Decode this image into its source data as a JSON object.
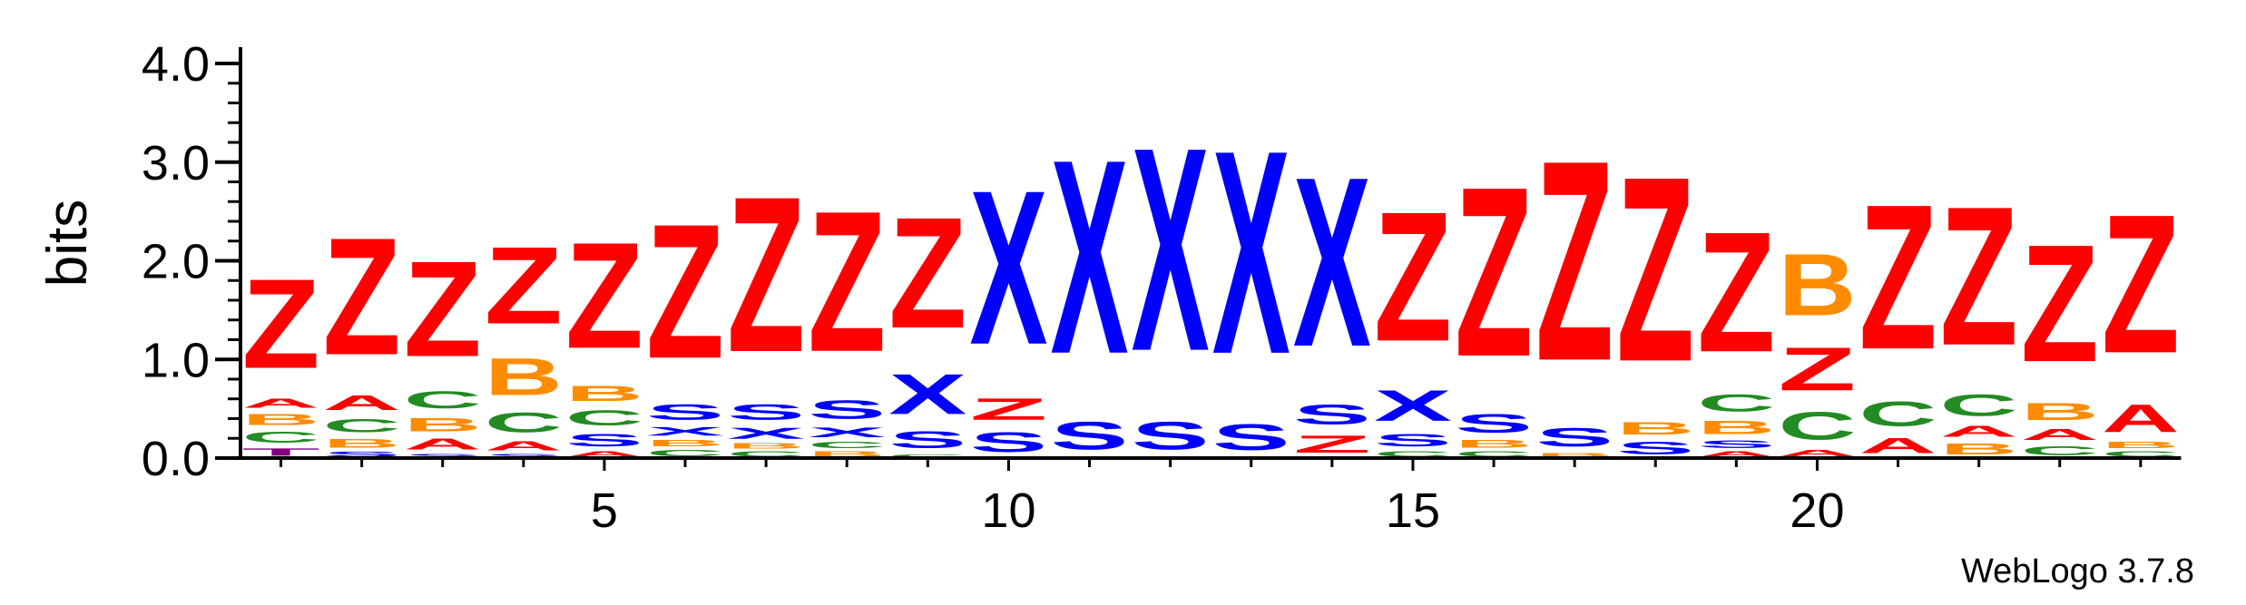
{
  "credit": "WebLogo 3.7.8",
  "colors": {
    "Z": "#ff0000",
    "X": "#0000ff",
    "S": "#0000ff",
    "B": "#ff8c00",
    "C": "#228b22",
    "A": "#ff0000",
    "T": "#800080"
  },
  "chart_data": {
    "type": "sequence-logo",
    "ylabel": "bits",
    "ylim": [
      0,
      4
    ],
    "yticks": [
      "0.0",
      "1.0",
      "2.0",
      "3.0",
      "4.0"
    ],
    "xticks": [
      5,
      10,
      15,
      20
    ],
    "xlim": [
      1,
      24
    ],
    "grid": false,
    "columns": [
      {
        "position": 1,
        "stack": [
          [
            "T",
            0.12
          ],
          [
            "C",
            0.18
          ],
          [
            "B",
            0.18
          ],
          [
            "A",
            0.15
          ],
          [
            "Z",
            1.45
          ]
        ]
      },
      {
        "position": 2,
        "stack": [
          [
            "S",
            0.08
          ],
          [
            "B",
            0.14
          ],
          [
            "C",
            0.22
          ],
          [
            "A",
            0.24
          ],
          [
            "Z",
            1.9
          ]
        ]
      },
      {
        "position": 3,
        "stack": [
          [
            "S",
            0.05
          ],
          [
            "A",
            0.18
          ],
          [
            "B",
            0.22
          ],
          [
            "C",
            0.28
          ],
          [
            "Z",
            1.55
          ]
        ]
      },
      {
        "position": 4,
        "stack": [
          [
            "S",
            0.05
          ],
          [
            "A",
            0.15
          ],
          [
            "C",
            0.32
          ],
          [
            "B",
            0.6
          ],
          [
            "Z",
            1.25
          ]
        ]
      },
      {
        "position": 5,
        "stack": [
          [
            "A",
            0.08
          ],
          [
            "S",
            0.2
          ],
          [
            "C",
            0.25
          ],
          [
            "B",
            0.25
          ],
          [
            "Z",
            1.72
          ]
        ]
      },
      {
        "position": 6,
        "stack": [
          [
            "C",
            0.1
          ],
          [
            "B",
            0.1
          ],
          [
            "X",
            0.14
          ],
          [
            "S",
            0.25
          ],
          [
            "Z",
            2.18
          ]
        ]
      },
      {
        "position": 7,
        "stack": [
          [
            "C",
            0.08
          ],
          [
            "B",
            0.08
          ],
          [
            "X",
            0.18
          ],
          [
            "S",
            0.25
          ],
          [
            "Z",
            2.52
          ]
        ]
      },
      {
        "position": 8,
        "stack": [
          [
            "B",
            0.08
          ],
          [
            "C",
            0.1
          ],
          [
            "X",
            0.16
          ],
          [
            "S",
            0.3
          ],
          [
            "Z",
            2.28
          ]
        ]
      },
      {
        "position": 9,
        "stack": [
          [
            "C",
            0.05
          ],
          [
            "S",
            0.27
          ],
          [
            "X",
            0.65
          ],
          [
            "Z",
            1.8
          ]
        ]
      },
      {
        "position": 10,
        "stack": [
          [
            "S",
            0.32
          ],
          [
            "Z",
            0.35
          ],
          [
            "X",
            2.5
          ]
        ]
      },
      {
        "position": 11,
        "stack": [
          [
            "S",
            0.45
          ],
          [
            "X",
            3.15
          ]
        ]
      },
      {
        "position": 12,
        "stack": [
          [
            "S",
            0.45
          ],
          [
            "X",
            3.3
          ]
        ]
      },
      {
        "position": 13,
        "stack": [
          [
            "S",
            0.42
          ],
          [
            "X",
            3.3
          ]
        ]
      },
      {
        "position": 14,
        "stack": [
          [
            "Z",
            0.28
          ],
          [
            "S",
            0.32
          ],
          [
            "X",
            2.75
          ]
        ]
      },
      {
        "position": 15,
        "stack": [
          [
            "C",
            0.08
          ],
          [
            "S",
            0.2
          ],
          [
            "X",
            0.5
          ],
          [
            "Z",
            2.1
          ]
        ]
      },
      {
        "position": 16,
        "stack": [
          [
            "C",
            0.08
          ],
          [
            "B",
            0.12
          ],
          [
            "S",
            0.3
          ],
          [
            "Z",
            2.75
          ]
        ]
      },
      {
        "position": 17,
        "stack": [
          [
            "B",
            0.06
          ],
          [
            "S",
            0.3
          ],
          [
            "Z",
            3.25
          ]
        ]
      },
      {
        "position": 18,
        "stack": [
          [
            "S",
            0.2
          ],
          [
            "B",
            0.2
          ],
          [
            "Z",
            3.0
          ]
        ]
      },
      {
        "position": 19,
        "stack": [
          [
            "A",
            0.08
          ],
          [
            "S",
            0.12
          ],
          [
            "B",
            0.22
          ],
          [
            "C",
            0.28
          ],
          [
            "Z",
            1.95
          ]
        ]
      },
      {
        "position": 20,
        "stack": [
          [
            "A",
            0.1
          ],
          [
            "C",
            0.45
          ],
          [
            "Z",
            0.7
          ],
          [
            "B",
            1.0
          ]
        ]
      },
      {
        "position": 21,
        "stack": [
          [
            "A",
            0.25
          ],
          [
            "C",
            0.4
          ],
          [
            "Z",
            2.35
          ]
        ]
      },
      {
        "position": 22,
        "stack": [
          [
            "B",
            0.18
          ],
          [
            "A",
            0.18
          ],
          [
            "C",
            0.35
          ],
          [
            "Z",
            2.25
          ]
        ]
      },
      {
        "position": 23,
        "stack": [
          [
            "C",
            0.15
          ],
          [
            "A",
            0.18
          ],
          [
            "B",
            0.28
          ],
          [
            "Z",
            1.9
          ]
        ]
      },
      {
        "position": 24,
        "stack": [
          [
            "C",
            0.08
          ],
          [
            "B",
            0.1
          ],
          [
            "A",
            0.45
          ],
          [
            "Z",
            2.25
          ]
        ]
      }
    ]
  }
}
